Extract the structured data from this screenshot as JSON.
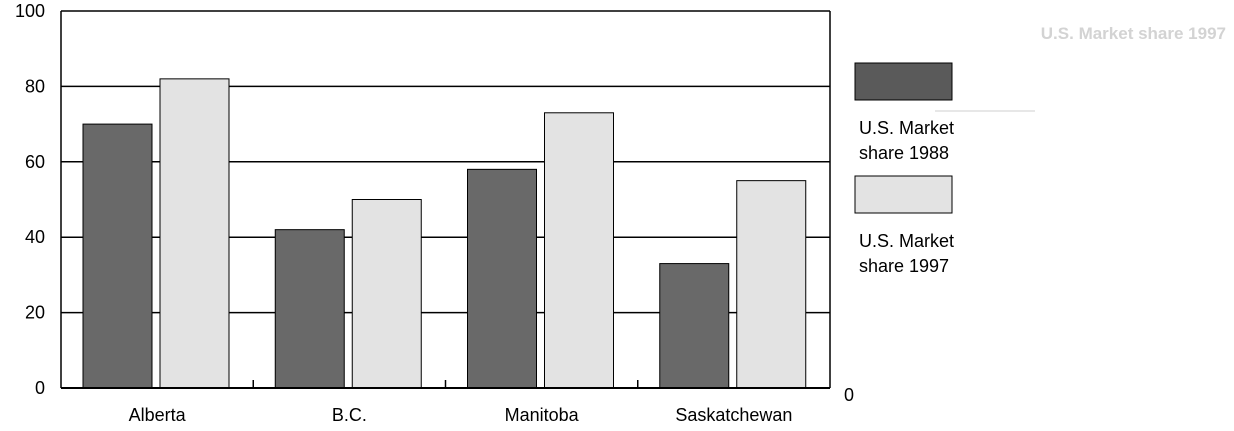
{
  "chart_data": {
    "type": "bar",
    "categories": [
      "Alberta",
      "B.C.",
      "Manitoba",
      "Saskatchewan"
    ],
    "series": [
      {
        "name": "U.S. Market share 1988",
        "legend_lines": [
          "U.S. Market",
          "share 1988"
        ],
        "values": [
          70,
          42,
          58,
          33
        ],
        "color": "#696969"
      },
      {
        "name": "U.S. Market share 1997",
        "legend_lines": [
          "U.S. Market",
          "share 1997"
        ],
        "values": [
          82,
          50,
          73,
          55
        ],
        "color": "#e3e3e3"
      }
    ],
    "ylim": [
      0,
      100
    ],
    "yticks": [
      0,
      20,
      40,
      60,
      80,
      100
    ],
    "right_axis_label": "0",
    "grid": true,
    "legend_position": "right",
    "faded_label": "U.S. Market share 1997"
  },
  "colors": {
    "legend_swatch_1988": "#5a5a5a"
  }
}
